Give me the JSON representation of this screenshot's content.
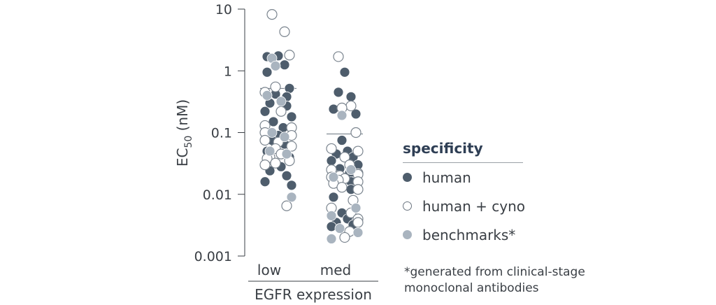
{
  "chart_data": {
    "type": "scatter",
    "y_scale": "log",
    "ylim": [
      0.001,
      10
    ],
    "ytick_values": [
      0.001,
      0.01,
      0.1,
      1,
      10
    ],
    "ytick_labels": [
      "0.001",
      "0.01",
      "0.1",
      "1",
      "10"
    ],
    "ylabel": "EC50 (nM)",
    "ylabel_main": "EC",
    "ylabel_sub": "50",
    "ylabel_unit": " (nM)",
    "xlabel": "EGFR expression",
    "categories": [
      "low",
      "med"
    ],
    "medians": [
      0.52,
      0.095
    ],
    "series": [
      {
        "name": "human",
        "color": "#4e5d6c",
        "low": [
          1.75,
          1.7,
          1.25,
          0.95,
          0.52,
          0.42,
          0.38,
          0.3,
          0.27,
          0.22,
          0.18,
          0.15,
          0.12,
          0.09,
          0.075,
          0.065,
          0.05,
          0.04,
          0.032,
          0.028,
          0.024,
          0.02,
          0.016,
          0.014
        ],
        "med": [
          0.95,
          0.45,
          0.38,
          0.24,
          0.2,
          0.075,
          0.05,
          0.045,
          0.04,
          0.035,
          0.03,
          0.026,
          0.022,
          0.02,
          0.016,
          0.012,
          0.009,
          0.006,
          0.005,
          0.004,
          0.0035,
          0.0032,
          0.003
        ]
      },
      {
        "name": "human + cyno",
        "color": "#ffffff",
        "low": [
          8.2,
          4.3,
          1.8,
          0.55,
          0.45,
          0.22,
          0.13,
          0.12,
          0.1,
          0.09,
          0.075,
          0.07,
          0.06,
          0.055,
          0.045,
          0.04,
          0.038,
          0.035,
          0.032,
          0.03,
          0.0065
        ],
        "med": [
          1.7,
          0.27,
          0.25,
          0.1,
          0.055,
          0.05,
          0.04,
          0.03,
          0.025,
          0.022,
          0.021,
          0.02,
          0.019,
          0.018,
          0.017,
          0.016,
          0.015,
          0.013,
          0.012,
          0.008,
          0.006,
          0.005,
          0.004,
          0.0035,
          0.0025,
          0.002
        ]
      },
      {
        "name": "benchmarks*",
        "color": "#a9b4bf",
        "low": [
          1.6,
          1.2,
          0.4,
          0.32,
          0.1,
          0.085,
          0.05,
          0.045,
          0.009
        ],
        "med": [
          0.19,
          0.025,
          0.019,
          0.006,
          0.0045,
          0.0028,
          0.0024,
          0.0019
        ]
      }
    ],
    "legend_title": "specificity",
    "legend_position": "right"
  },
  "footnote_line1": "*generated from clinical-stage",
  "footnote_line2": "monoclonal antibodies"
}
